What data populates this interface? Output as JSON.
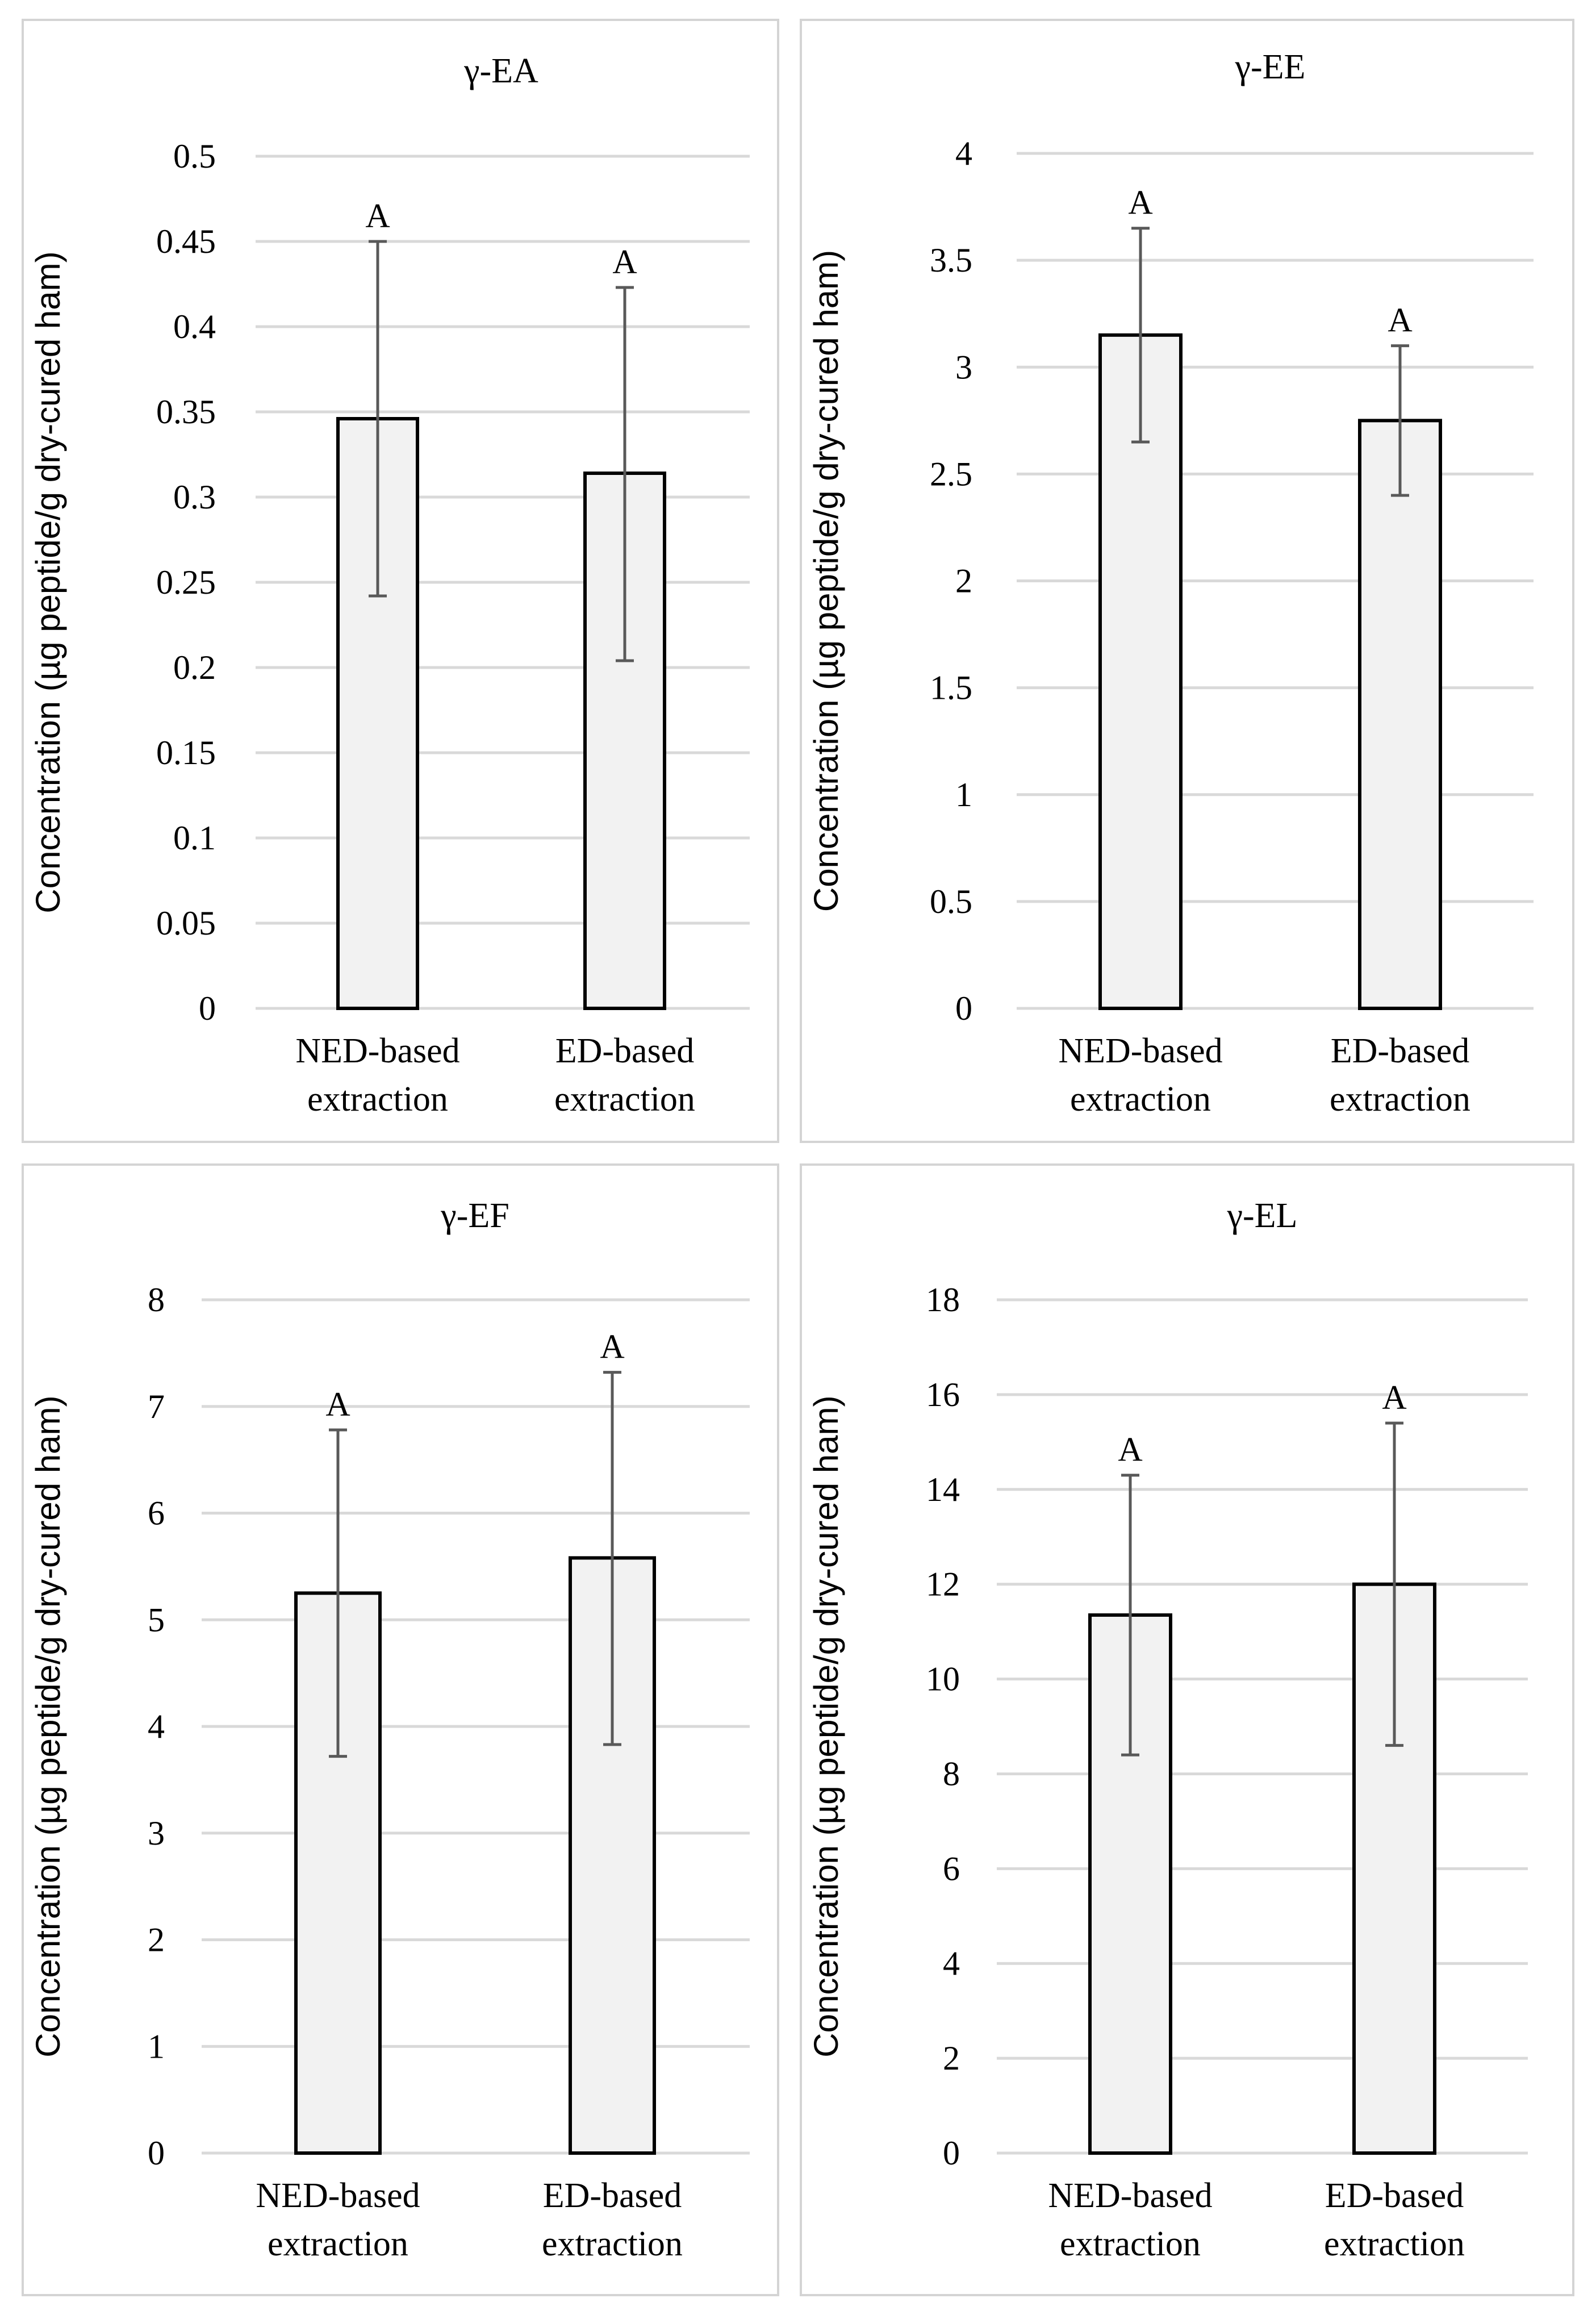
{
  "chart_data": [
    {
      "type": "bar",
      "title": "γ-EA",
      "ylabel": "Concentration (µg peptide/g dry-cured ham)",
      "categories": [
        [
          "NED-based",
          "extraction"
        ],
        [
          "ED-based",
          "extraction"
        ]
      ],
      "values": [
        0.346,
        0.314
      ],
      "error_low": [
        0.242,
        0.204
      ],
      "error_high": [
        0.45,
        0.423
      ],
      "labels": [
        "A",
        "A"
      ],
      "ylim": [
        0,
        0.5
      ],
      "ticks": [
        "0",
        "0.05",
        "0.1",
        "0.15",
        "0.2",
        "0.25",
        "0.3",
        "0.35",
        "0.4",
        "0.45",
        "0.5"
      ],
      "grid": true
    },
    {
      "type": "bar",
      "title": "γ-EE",
      "ylabel": "Concentration (µg peptide/g dry-cured ham)",
      "categories": [
        [
          "NED-based",
          "extraction"
        ],
        [
          "ED-based",
          "extraction"
        ]
      ],
      "values": [
        3.15,
        2.75
      ],
      "error_low": [
        2.65,
        2.4
      ],
      "error_high": [
        3.65,
        3.1
      ],
      "labels": [
        "A",
        "A"
      ],
      "ylim": [
        0,
        4
      ],
      "ticks": [
        "0",
        "0.5",
        "1",
        "1.5",
        "2",
        "2.5",
        "3",
        "3.5",
        "4"
      ],
      "grid": true
    },
    {
      "type": "bar",
      "title": "γ-EF",
      "ylabel": "Concentration (µg peptide/g dry-cured ham)",
      "categories": [
        [
          "NED-based",
          "extraction"
        ],
        [
          "ED-based",
          "extraction"
        ]
      ],
      "values": [
        5.25,
        5.58
      ],
      "error_low": [
        3.72,
        3.83
      ],
      "error_high": [
        6.78,
        7.32
      ],
      "labels": [
        "A",
        "A"
      ],
      "ylim": [
        0,
        8
      ],
      "ticks": [
        "0",
        "1",
        "2",
        "3",
        "4",
        "5",
        "6",
        "7",
        "8"
      ],
      "grid": true
    },
    {
      "type": "bar",
      "title": "γ-EL",
      "ylabel": "Concentration (µg peptide/g dry-cured ham)",
      "categories": [
        [
          "NED-based",
          "extraction"
        ],
        [
          "ED-based",
          "extraction"
        ]
      ],
      "values": [
        11.35,
        12.0
      ],
      "error_low": [
        8.4,
        8.6
      ],
      "error_high": [
        14.3,
        15.4
      ],
      "labels": [
        "A",
        "A"
      ],
      "ylim": [
        0,
        18
      ],
      "ticks": [
        "0",
        "2",
        "4",
        "6",
        "8",
        "10",
        "12",
        "14",
        "16",
        "18"
      ],
      "grid": true
    }
  ]
}
